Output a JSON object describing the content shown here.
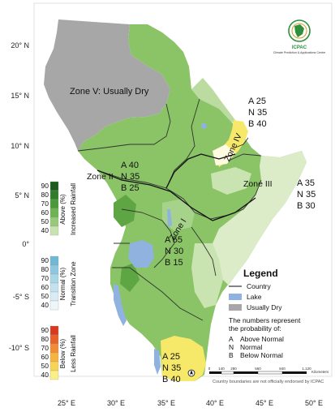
{
  "latitude_labels": [
    "20° N",
    "15° N",
    "10° N",
    "5° N",
    "0°",
    "-5° S",
    "-10° S"
  ],
  "longitude_labels": [
    "25° E",
    "30° E",
    "35° E",
    "40° E",
    "45° E",
    "50° E"
  ],
  "zones": {
    "zone1": "Zone I",
    "zone2": "Zone II",
    "zone3": "Zone III",
    "zone4": "Zone IV",
    "zone5": "Zone V:  Usually Dry"
  },
  "probabilities": [
    {
      "lines": [
        "A 25",
        "N 35",
        "B 40"
      ]
    },
    {
      "lines": [
        "A 40",
        "N 35",
        "B 25"
      ]
    },
    {
      "lines": [
        "A 35",
        "N 35",
        "B 30"
      ]
    },
    {
      "lines": [
        "A 55",
        "N 30",
        "B 15"
      ]
    },
    {
      "lines": [
        "A 25",
        "N 35",
        "B 40"
      ]
    }
  ],
  "colorbar": {
    "above": {
      "ticks": [
        "90",
        "80",
        "70",
        "60",
        "50",
        "40"
      ],
      "category": "Above (%)",
      "title": "Increased Rainfall",
      "colors": [
        "#1e5a1e",
        "#2f7d2a",
        "#4b9a3a",
        "#6db34f",
        "#98c97a",
        "#c8e2b0"
      ]
    },
    "normal": {
      "ticks": [
        "90",
        "80",
        "70",
        "60",
        "50",
        "40"
      ],
      "category": "Normal (%)",
      "title": "Transition Zone",
      "colors": [
        "#6fb8d6",
        "#8ec8e0",
        "#a9d6e8",
        "#c2e2ef",
        "#d9ecf4",
        "#eef6fa"
      ]
    },
    "below": {
      "ticks": [
        "90",
        "80",
        "70",
        "60",
        "50",
        "40"
      ],
      "category": "Below (%)",
      "title": "Less Rainfall",
      "colors": [
        "#d83a1f",
        "#e8602a",
        "#f08c33",
        "#f5b340",
        "#f9d454",
        "#fbef88"
      ]
    }
  },
  "legend": {
    "title": "Legend",
    "country": "Country",
    "lake": "Lake",
    "usually_dry": "Usually Dry",
    "note": [
      "The numbers represent",
      "the probability of:"
    ],
    "keys": [
      {
        "k": "A",
        "v": "Above Normal"
      },
      {
        "k": "N",
        "v": "Normal"
      },
      {
        "k": "B",
        "v": "Below Normal"
      }
    ],
    "colors": {
      "country": "#333333",
      "lake": "#8fb2de",
      "usually_dry": "#a7a7a7"
    }
  },
  "scalebar": {
    "ticks": [
      "0",
      "140",
      "280",
      "560",
      "840",
      "1,120"
    ],
    "unit": "Kilometers"
  },
  "disclaimer": "Country boundaries are not officially endorsed by ICPAC",
  "logo": {
    "text": "ICPAC",
    "subtitle": "Climate Prediction & Applications Centre"
  },
  "map_colors": {
    "green_light": "#a9d38a",
    "green_mid": "#7fbf5e",
    "green_dark": "#5aa740",
    "pale": "#e8f2d8",
    "yellow": "#f6e969",
    "grey": "#a7a7a7",
    "lake": "#8fb2de"
  }
}
